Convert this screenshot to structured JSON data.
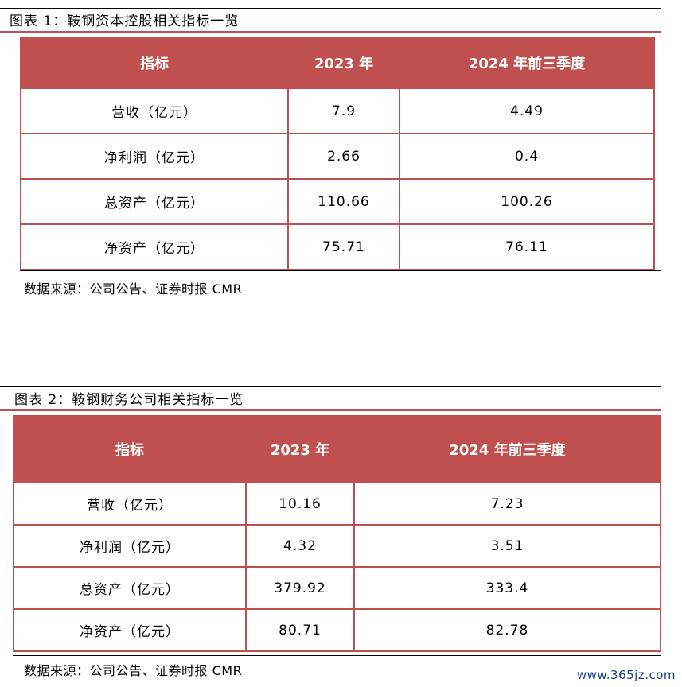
{
  "table1": {
    "title": "图表 1：鞍钢资本控股相关指标一览",
    "headers": [
      "指标",
      "2023 年",
      "2024 年前三季度"
    ],
    "rows": [
      [
        "营收（亿元）",
        "7.9",
        "4.49"
      ],
      [
        "净利润（亿元）",
        "2.66",
        "0.4"
      ],
      [
        "总资产（亿元）",
        "110.66",
        "100.26"
      ],
      [
        "净资产（亿元）",
        "75.71",
        "76.11"
      ]
    ],
    "source": "数据来源：公司公告、证券时报 CMR"
  },
  "table2": {
    "title": "图表 2：鞍钢财务公司相关指标一览",
    "headers": [
      "指标",
      "2023 年",
      "2024 年前三季度"
    ],
    "rows": [
      [
        "营收（亿元）",
        "10.16",
        "7.23"
      ],
      [
        "净利润（亿元）",
        "4.32",
        "3.51"
      ],
      [
        "总资产（亿元）",
        "379.92",
        "333.4"
      ],
      [
        "净资产（亿元）",
        "80.71",
        "82.78"
      ]
    ],
    "source": "数据来源：公司公告、证券时报 CMR"
  },
  "watermark": "www.365jz.com",
  "colors": {
    "header_bg": "#c0504d",
    "border": "#c0504d",
    "watermark": "#1a3f8a"
  }
}
